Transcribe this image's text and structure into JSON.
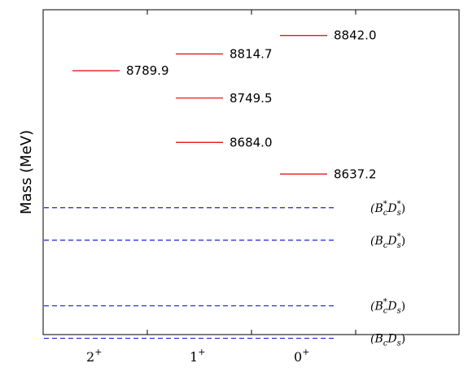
{
  "chart_data": {
    "type": "level-diagram",
    "title": "",
    "xlabel": "",
    "ylabel": "Mass (MeV)",
    "categories": [
      {
        "main": "2",
        "sup": "+"
      },
      {
        "main": "1",
        "sup": "+"
      },
      {
        "main": "0",
        "sup": "+"
      }
    ],
    "ylim": [
      8400,
      8880
    ],
    "levels": [
      {
        "category": "2+",
        "mass": 8789.9,
        "label": "8789.9"
      },
      {
        "category": "1+",
        "mass": 8814.7,
        "label": "8814.7"
      },
      {
        "category": "1+",
        "mass": 8749.5,
        "label": "8749.5"
      },
      {
        "category": "1+",
        "mass": 8684.0,
        "label": "8684.0"
      },
      {
        "category": "0+",
        "mass": 8842.0,
        "label": "8842.0"
      },
      {
        "category": "0+",
        "mass": 8637.2,
        "label": "8637.2"
      }
    ],
    "thresholds": [
      {
        "mass": 8587.5,
        "label": {
          "pre": "(B",
          "sub1": "c",
          "sup1": "*",
          "mid": "D",
          "sub2": "s",
          "sup2": "*",
          "post": ")"
        }
      },
      {
        "mass": 8539.5,
        "label": {
          "pre": "(B",
          "sub1": "c",
          "sup1": "",
          "mid": "D",
          "sub2": "s",
          "sup2": "*",
          "post": ")"
        }
      },
      {
        "mass": 8442.5,
        "label": {
          "pre": "(B",
          "sub1": "c",
          "sup1": "*",
          "mid": "D",
          "sub2": "s",
          "sup2": "",
          "post": ")"
        }
      },
      {
        "mass": 8394.5,
        "label": {
          "pre": "(B",
          "sub1": "c",
          "sup1": "",
          "mid": "D",
          "sub2": "s",
          "sup2": "",
          "post": ")"
        }
      }
    ],
    "colors": {
      "levels": "#e31a1c",
      "thresholds": "#1f1fd8",
      "axis": "#000000"
    },
    "grid": false,
    "legend": "none"
  }
}
